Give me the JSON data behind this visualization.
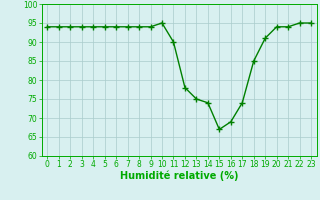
{
  "x": [
    0,
    1,
    2,
    3,
    4,
    5,
    6,
    7,
    8,
    9,
    10,
    11,
    12,
    13,
    14,
    15,
    16,
    17,
    18,
    19,
    20,
    21,
    22,
    23
  ],
  "y": [
    94,
    94,
    94,
    94,
    94,
    94,
    94,
    94,
    94,
    94,
    95,
    90,
    78,
    75,
    74,
    67,
    69,
    74,
    85,
    91,
    94,
    94,
    95,
    95
  ],
  "line_color": "#008000",
  "marker": "+",
  "marker_size": 4,
  "marker_lw": 1.0,
  "bg_color": "#d8f0f0",
  "grid_color": "#aacccc",
  "text_color": "#00aa00",
  "xlabel": "Humidité relative (%)",
  "ylim": [
    60,
    100
  ],
  "xlim": [
    -0.5,
    23.5
  ],
  "yticks": [
    60,
    65,
    70,
    75,
    80,
    85,
    90,
    95,
    100
  ],
  "xticks": [
    0,
    1,
    2,
    3,
    4,
    5,
    6,
    7,
    8,
    9,
    10,
    11,
    12,
    13,
    14,
    15,
    16,
    17,
    18,
    19,
    20,
    21,
    22,
    23
  ],
  "tick_fontsize": 5.5,
  "xlabel_fontsize": 7.0,
  "line_width": 1.0
}
